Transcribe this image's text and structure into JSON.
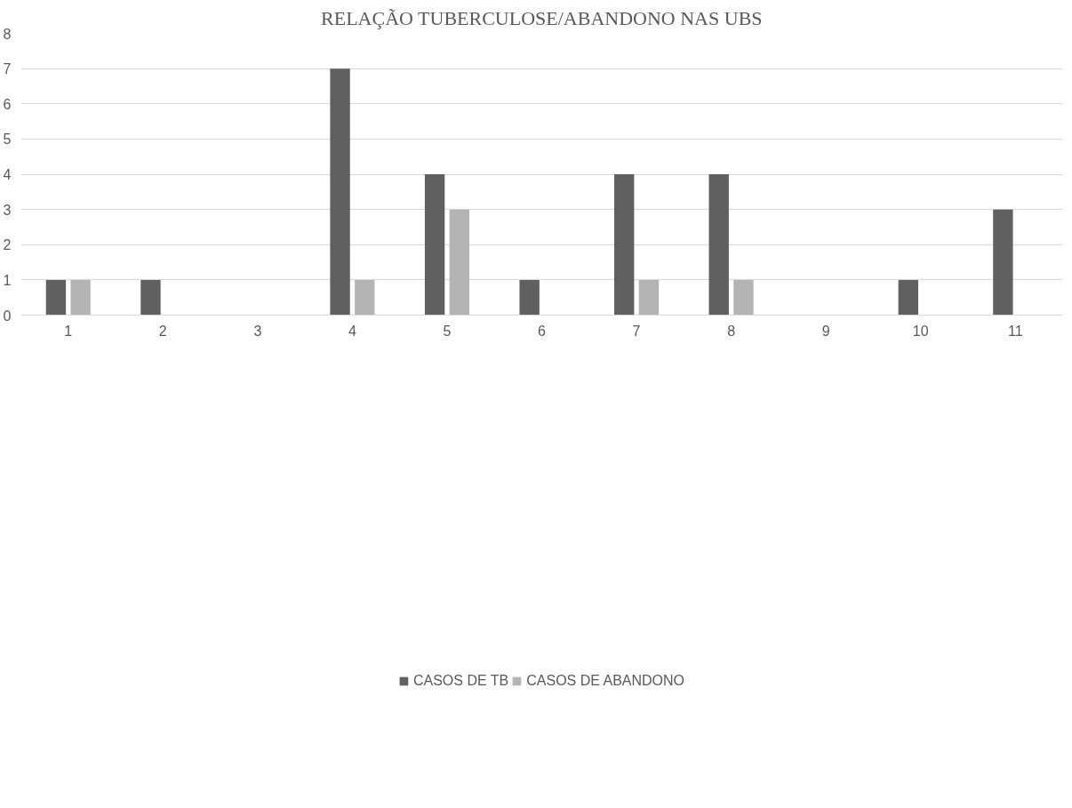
{
  "chart_data": {
    "type": "bar",
    "title": "RELAÇÃO TUBERCULOSE/ABANDONO NAS UBS",
    "categories": [
      "1",
      "2",
      "3",
      "4",
      "5",
      "6",
      "7",
      "8",
      "9",
      "10",
      "11"
    ],
    "series": [
      {
        "name": "CASOS DE TB",
        "color": "#606060",
        "values": [
          1,
          1,
          0,
          7,
          4,
          1,
          4,
          4,
          0,
          1,
          3
        ]
      },
      {
        "name": "CASOS DE ABANDONO",
        "color": "#b4b4b4",
        "values": [
          1,
          0,
          0,
          1,
          3,
          0,
          1,
          1,
          0,
          0,
          0
        ]
      }
    ],
    "ylim": [
      0,
      8
    ],
    "yticks": [
      0,
      1,
      2,
      3,
      4,
      5,
      6,
      7,
      8
    ],
    "grid": "y",
    "legend": "bottom"
  }
}
